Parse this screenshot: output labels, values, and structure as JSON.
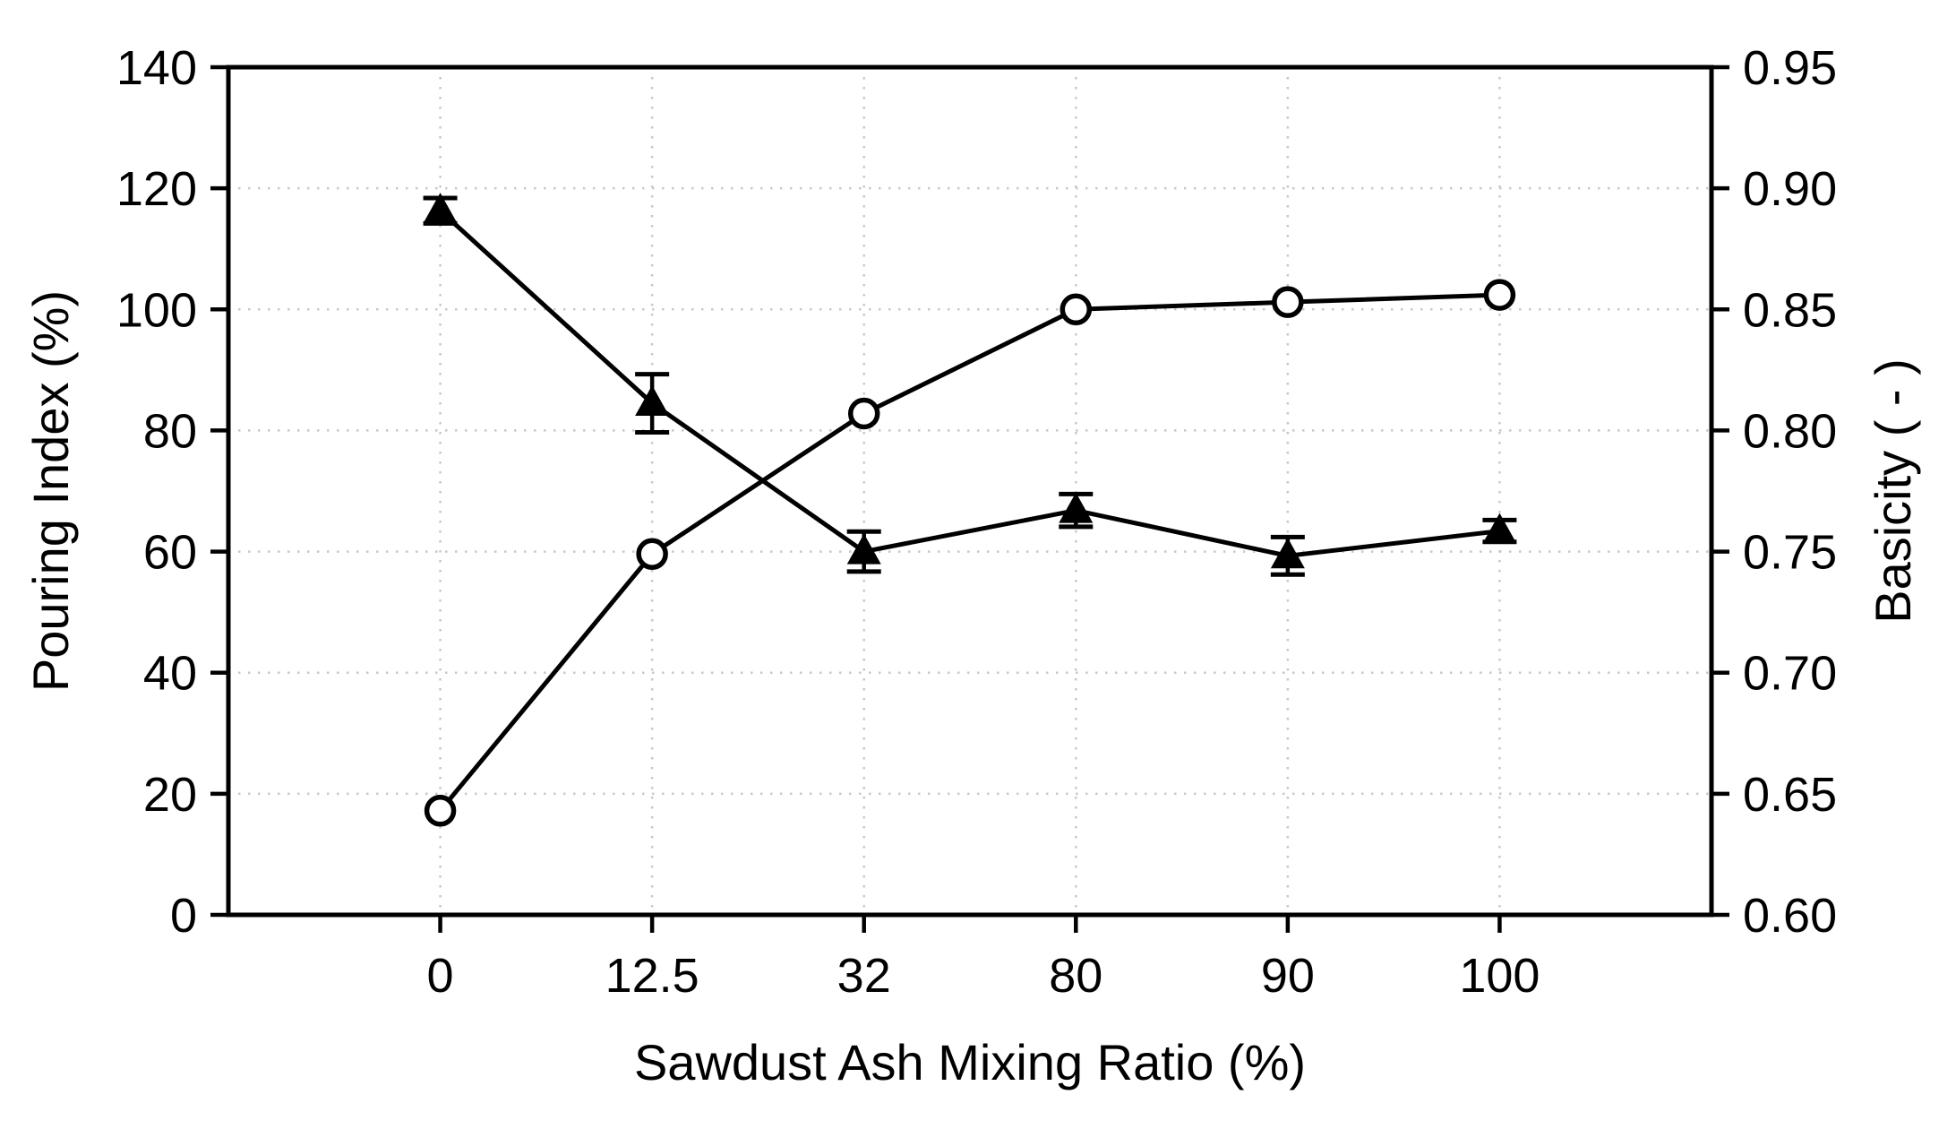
{
  "chart_data": {
    "type": "line",
    "title": "",
    "xlabel": "Sawdust Ash Mixing Ratio (%)",
    "categories": [
      0,
      12.5,
      32,
      80,
      90,
      100
    ],
    "x_tick_labels": [
      "0",
      "12.5",
      "32",
      "80",
      "90",
      "100"
    ],
    "left_axis": {
      "label": "Pouring Index (%)",
      "range": [
        0,
        140
      ],
      "tick_step": 20,
      "tick_labels": [
        "0",
        "20",
        "40",
        "60",
        "80",
        "100",
        "120",
        "140"
      ]
    },
    "right_axis": {
      "label": "Basicity ( - )",
      "range": [
        0.6,
        0.95
      ],
      "tick_step": 0.05,
      "tick_labels": [
        "0.60",
        "0.65",
        "0.70",
        "0.75",
        "0.80",
        "0.85",
        "0.90",
        "0.95"
      ]
    },
    "series": [
      {
        "name": "Pouring Index",
        "axis": "left",
        "marker": "filled-triangle",
        "line_style": "solid",
        "color": "#000000",
        "values": [
          116.3,
          84.5,
          60.0,
          66.8,
          59.3,
          63.4
        ],
        "error_bars": [
          2.1,
          4.8,
          3.3,
          2.7,
          3.1,
          1.8
        ]
      },
      {
        "name": "Basicity",
        "axis": "right",
        "marker": "open-circle",
        "line_style": "solid",
        "color": "#000000",
        "values": [
          0.643,
          0.749,
          0.807,
          0.85,
          0.853,
          0.856
        ],
        "error_bars": null
      }
    ],
    "grid": {
      "style": "dotted",
      "color": "#c8c8c8",
      "horizontal": true,
      "vertical": true
    },
    "legend": "none",
    "background": "#ffffff",
    "foreground": "#000000"
  }
}
